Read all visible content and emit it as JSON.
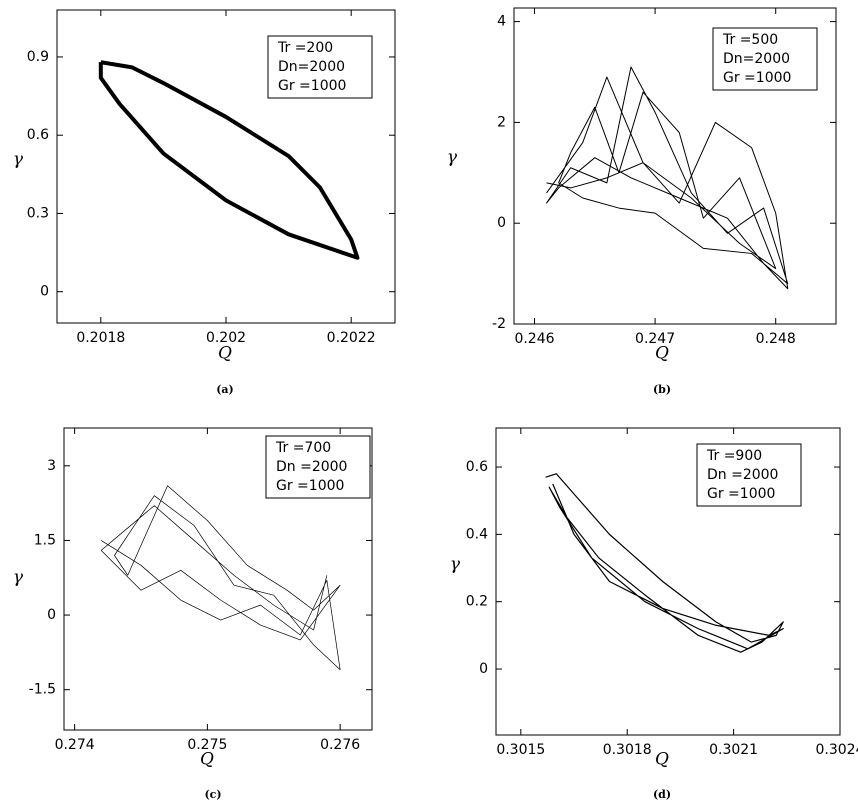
{
  "chart_data": [
    {
      "type": "line",
      "caption": "(a)",
      "x_label": "Q",
      "y_label": "γ",
      "legend_lines": [
        "Tr =200",
        "Dn=2000",
        "Gr =1000"
      ],
      "color": "#000000",
      "xlim": [
        0.20173,
        0.20227
      ],
      "ylim": [
        -0.12,
        1.08
      ],
      "xticks": [
        0.2018,
        0.202,
        0.2022
      ],
      "yticks": [
        0,
        0.3,
        0.6,
        0.9
      ],
      "x": [
        0.2018,
        0.20185,
        0.2019,
        0.202,
        0.2021,
        0.20215,
        0.2022,
        0.20221,
        0.2021,
        0.202,
        0.2019,
        0.20183,
        0.2018,
        0.2018
      ],
      "values": [
        0.88,
        0.86,
        0.8,
        0.67,
        0.52,
        0.4,
        0.2,
        0.13,
        0.22,
        0.35,
        0.53,
        0.72,
        0.82,
        0.88
      ]
    },
    {
      "type": "line",
      "caption": "(b)",
      "x_label": "Q",
      "y_label": "γ",
      "legend_lines": [
        "Tr =500",
        "Dn=2000",
        "Gr =1000"
      ],
      "color": "#000000",
      "xlim": [
        0.24583,
        0.2485
      ],
      "ylim": [
        -2,
        4.27
      ],
      "xticks": [
        0.246,
        0.247,
        0.248
      ],
      "yticks": [
        -2,
        0,
        2,
        4
      ],
      "x": [
        0.2461,
        0.2464,
        0.2466,
        0.2469,
        0.2472,
        0.2475,
        0.2478,
        0.248,
        0.2481,
        0.2479,
        0.2476,
        0.2472,
        0.2468,
        0.2465,
        0.2462,
        0.2461,
        0.2463,
        0.2466,
        0.2468,
        0.247,
        0.2473,
        0.2476,
        0.2479,
        0.2481,
        0.2478,
        0.2474,
        0.247,
        0.2467,
        0.2464,
        0.2462,
        0.2463,
        0.2465,
        0.2467,
        0.2469,
        0.2472,
        0.2474,
        0.2477,
        0.248,
        0.2477,
        0.2473,
        0.2469,
        0.2466,
        0.2463,
        0.2461
      ],
      "values": [
        0.6,
        1.6,
        2.9,
        1.2,
        0.4,
        2.0,
        1.5,
        0.2,
        -1.3,
        -0.8,
        0.1,
        0.5,
        0.9,
        1.3,
        0.7,
        0.4,
        1.1,
        0.8,
        3.1,
        2.2,
        0.6,
        -0.2,
        0.3,
        -1.2,
        -0.6,
        -0.5,
        0.2,
        0.3,
        0.5,
        0.8,
        1.4,
        2.3,
        1.0,
        2.6,
        1.8,
        0.1,
        0.9,
        -0.9,
        -0.4,
        0.5,
        1.2,
        0.9,
        0.7,
        0.8
      ]
    },
    {
      "type": "line",
      "caption": "(c)",
      "x_label": "Q",
      "y_label": "γ",
      "legend_lines": [
        "Tr =700",
        "Dn =2000",
        "Gr =1000"
      ],
      "color": "#000000",
      "xlim": [
        0.27392,
        0.27624
      ],
      "ylim": [
        -2.31,
        3.76
      ],
      "xticks": [
        0.274,
        0.275,
        0.276
      ],
      "yticks": [
        -1.5,
        0,
        1.5,
        3
      ],
      "x": [
        0.2742,
        0.2745,
        0.2748,
        0.2751,
        0.2754,
        0.2757,
        0.2759,
        0.276,
        0.2758,
        0.2755,
        0.2752,
        0.2749,
        0.2746,
        0.2743,
        0.2744,
        0.2747,
        0.275,
        0.2753,
        0.2756,
        0.2758,
        0.276,
        0.2757,
        0.2754,
        0.2751,
        0.2748,
        0.2745,
        0.2742,
        0.2746,
        0.2749,
        0.2752,
        0.2755,
        0.2758,
        0.2759
      ],
      "values": [
        1.5,
        1.0,
        0.3,
        -0.1,
        0.2,
        -0.4,
        0.7,
        -1.1,
        -0.6,
        0.4,
        0.6,
        1.8,
        2.4,
        1.2,
        0.8,
        2.6,
        1.9,
        1.0,
        0.5,
        0.1,
        0.6,
        -0.5,
        -0.2,
        0.3,
        0.9,
        0.5,
        1.3,
        2.2,
        1.5,
        0.8,
        0.2,
        -0.3,
        0.8
      ]
    },
    {
      "type": "line",
      "caption": "(d)",
      "x_label": "Q",
      "y_label": "γ",
      "legend_lines": [
        "Tr =900",
        "Dn =2000",
        "Gr =1000"
      ],
      "color": "#000000",
      "xlim": [
        0.30143,
        0.3024
      ],
      "ylim": [
        -0.196,
        0.716
      ],
      "xticks": [
        0.3015,
        0.3018,
        0.3021,
        0.3024
      ],
      "yticks": [
        0,
        0.2,
        0.4,
        0.6
      ],
      "x": [
        0.30157,
        0.3016,
        0.30165,
        0.30175,
        0.3019,
        0.30205,
        0.30215,
        0.30222,
        0.30224,
        0.30218,
        0.30212,
        0.302,
        0.30185,
        0.30172,
        0.30163,
        0.30158,
        0.30161,
        0.3017,
        0.30185,
        0.302,
        0.30214,
        0.30224,
        0.3022,
        0.30205,
        0.3019,
        0.30175,
        0.30165,
        0.30159
      ],
      "values": [
        0.57,
        0.58,
        0.52,
        0.4,
        0.26,
        0.14,
        0.08,
        0.1,
        0.14,
        0.08,
        0.05,
        0.1,
        0.22,
        0.33,
        0.45,
        0.54,
        0.48,
        0.33,
        0.2,
        0.12,
        0.06,
        0.12,
        0.1,
        0.13,
        0.18,
        0.26,
        0.4,
        0.55
      ]
    }
  ]
}
